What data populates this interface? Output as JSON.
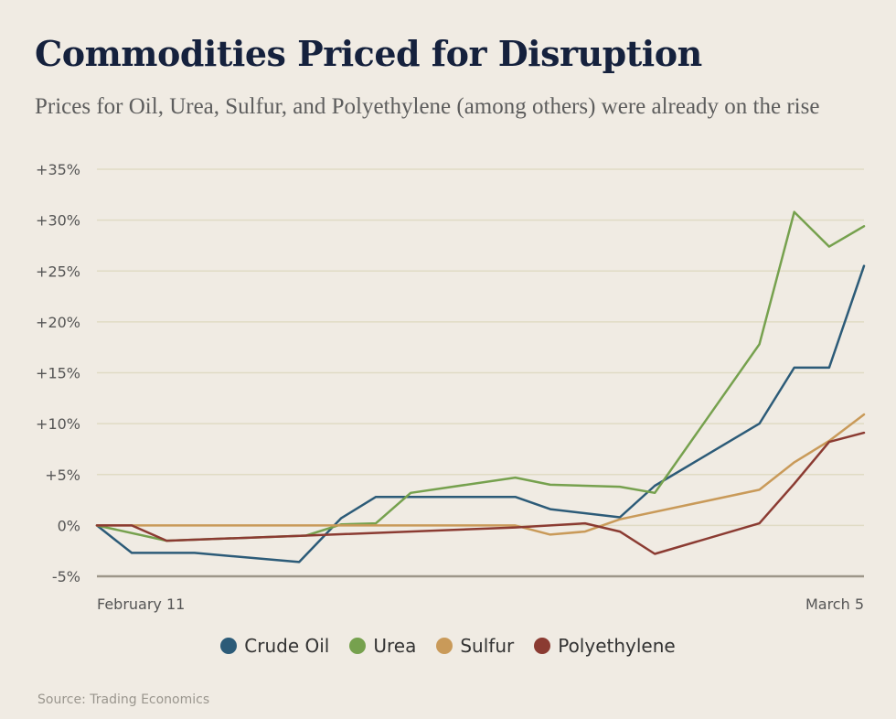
{
  "title": "Commodities Priced for Disruption",
  "subtitle": "Prices for Oil, Urea, Sulfur, and Polyethylene (among others) were already on the rise",
  "source": "Source: Trading Economics",
  "chart_data": {
    "type": "line",
    "title": "Commodities Priced for Disruption",
    "xlabel": "",
    "ylabel": "",
    "x_tick_labels": [
      "February 11",
      "March 5"
    ],
    "x_range": [
      0,
      22
    ],
    "ylim": [
      -5,
      35
    ],
    "y_ticks": [
      35,
      30,
      25,
      20,
      15,
      10,
      5,
      0,
      -5
    ],
    "y_tick_labels": [
      "+35%",
      "+30%",
      "+25%",
      "+20%",
      "+15%",
      "+10%",
      "+5%",
      "0%",
      "-5%"
    ],
    "grid": true,
    "legend_position": "bottom",
    "series": [
      {
        "name": "Crude Oil",
        "color": "#2c5b78",
        "x": [
          0,
          1,
          2.8,
          5.8,
          7,
          8,
          10,
          12,
          13,
          15,
          16,
          19,
          20,
          21,
          22
        ],
        "y": [
          0,
          -2.7,
          -2.7,
          -3.6,
          0.7,
          2.8,
          2.8,
          2.8,
          1.6,
          0.8,
          3.9,
          10,
          15.5,
          15.5,
          25.5
        ]
      },
      {
        "name": "Urea",
        "color": "#76a14e",
        "x": [
          0,
          2,
          6,
          7,
          8,
          9,
          12,
          13,
          15,
          16,
          19,
          20,
          21,
          22
        ],
        "y": [
          0,
          -1.5,
          -1,
          0.1,
          0.2,
          3.2,
          4.7,
          4,
          3.8,
          3.2,
          17.8,
          30.8,
          27.4,
          29.4
        ]
      },
      {
        "name": "Sulfur",
        "color": "#c99a59",
        "x": [
          0,
          12,
          13,
          14,
          15,
          19,
          20,
          21,
          22
        ],
        "y": [
          0,
          0,
          -0.9,
          -0.6,
          0.6,
          3.5,
          6.2,
          8.3,
          10.9
        ]
      },
      {
        "name": "Polyethylene",
        "color": "#8b3b32",
        "x": [
          0,
          1,
          2,
          6,
          12,
          14,
          15,
          16,
          19,
          20,
          21,
          22
        ],
        "y": [
          0,
          0,
          -1.5,
          -1,
          -0.2,
          0.2,
          -0.6,
          -2.8,
          0.2,
          4.1,
          8.2,
          9.1
        ]
      }
    ]
  }
}
